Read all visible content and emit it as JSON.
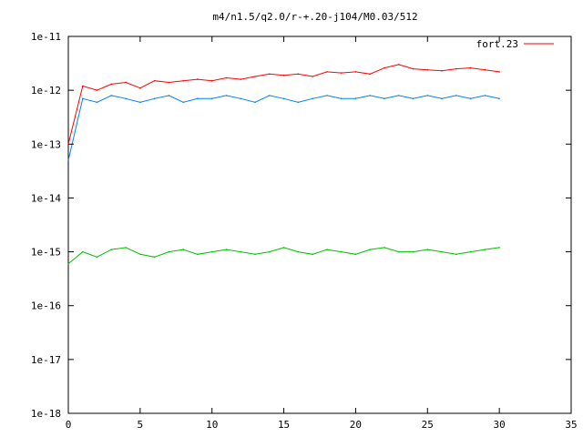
{
  "chart_data": {
    "type": "line",
    "title": "m4/n1.5/q2.0/r-+.20-j104/M0.03/512",
    "xlabel": "",
    "ylabel": "",
    "xlim": [
      0,
      35
    ],
    "ylim": [
      1e-18,
      1e-11
    ],
    "yscale": "log",
    "x_ticks": [
      0,
      5,
      10,
      15,
      20,
      25,
      30,
      35
    ],
    "y_ticks": [
      1e-18,
      1e-17,
      1e-16,
      1e-15,
      1e-14,
      1e-13,
      1e-12,
      1e-11
    ],
    "x_tick_labels": [
      "0",
      "5",
      "10",
      "15",
      "20",
      "25",
      "30",
      "35"
    ],
    "y_tick_labels": [
      "1e-18",
      "1e-17",
      "1e-16",
      "1e-15",
      "1e-14",
      "1e-13",
      "1e-12",
      "1e-11"
    ],
    "grid": false,
    "legend_position": "top-right",
    "series": [
      {
        "name": "fort.23",
        "color": "#ff0000",
        "x": [
          0,
          1,
          2,
          3,
          4,
          5,
          6,
          7,
          8,
          9,
          10,
          11,
          12,
          13,
          14,
          15,
          16,
          17,
          18,
          19,
          20,
          21,
          22,
          23,
          24,
          25,
          26,
          27,
          28,
          29,
          30
        ],
        "y": [
          1e-13,
          1.2e-12,
          1e-12,
          1.3e-12,
          1.4e-12,
          1.1e-12,
          1.5e-12,
          1.4e-12,
          1.5e-12,
          1.6e-12,
          1.5e-12,
          1.7e-12,
          1.6e-12,
          1.8e-12,
          2e-12,
          1.9e-12,
          2e-12,
          1.8e-12,
          2.2e-12,
          2.1e-12,
          2.2e-12,
          2e-12,
          2.6e-12,
          3e-12,
          2.5e-12,
          2.4e-12,
          2.3e-12,
          2.5e-12,
          2.6e-12,
          2.4e-12,
          2.2e-12
        ]
      },
      {
        "name": "",
        "color": "#0080ff",
        "x": [
          0,
          1,
          2,
          3,
          4,
          5,
          6,
          7,
          8,
          9,
          10,
          11,
          12,
          13,
          14,
          15,
          16,
          17,
          18,
          19,
          20,
          21,
          22,
          23,
          24,
          25,
          26,
          27,
          28,
          29,
          30
        ],
        "y": [
          5e-14,
          7e-13,
          6e-13,
          8e-13,
          7e-13,
          6e-13,
          7e-13,
          8e-13,
          6e-13,
          7e-13,
          7e-13,
          8e-13,
          7e-13,
          6e-13,
          8e-13,
          7e-13,
          6e-13,
          7e-13,
          8e-13,
          7e-13,
          7e-13,
          8e-13,
          7e-13,
          8e-13,
          7e-13,
          8e-13,
          7e-13,
          8e-13,
          7e-13,
          8e-13,
          7e-13
        ]
      },
      {
        "name": "",
        "color": "#00c000",
        "x": [
          0,
          1,
          2,
          3,
          4,
          5,
          6,
          7,
          8,
          9,
          10,
          11,
          12,
          13,
          14,
          15,
          16,
          17,
          18,
          19,
          20,
          21,
          22,
          23,
          24,
          25,
          26,
          27,
          28,
          29,
          30
        ],
        "y": [
          6e-16,
          1e-15,
          8e-16,
          1.1e-15,
          1.2e-15,
          9e-16,
          8e-16,
          1e-15,
          1.1e-15,
          9e-16,
          1e-15,
          1.1e-15,
          1e-15,
          9e-16,
          1e-15,
          1.2e-15,
          1e-15,
          9e-16,
          1.1e-15,
          1e-15,
          9e-16,
          1.1e-15,
          1.2e-15,
          1e-15,
          1e-15,
          1.1e-15,
          1e-15,
          9e-16,
          1e-15,
          1.1e-15,
          1.2e-15
        ]
      }
    ]
  },
  "colors": {
    "axis": "#000000",
    "background": "#ffffff"
  }
}
